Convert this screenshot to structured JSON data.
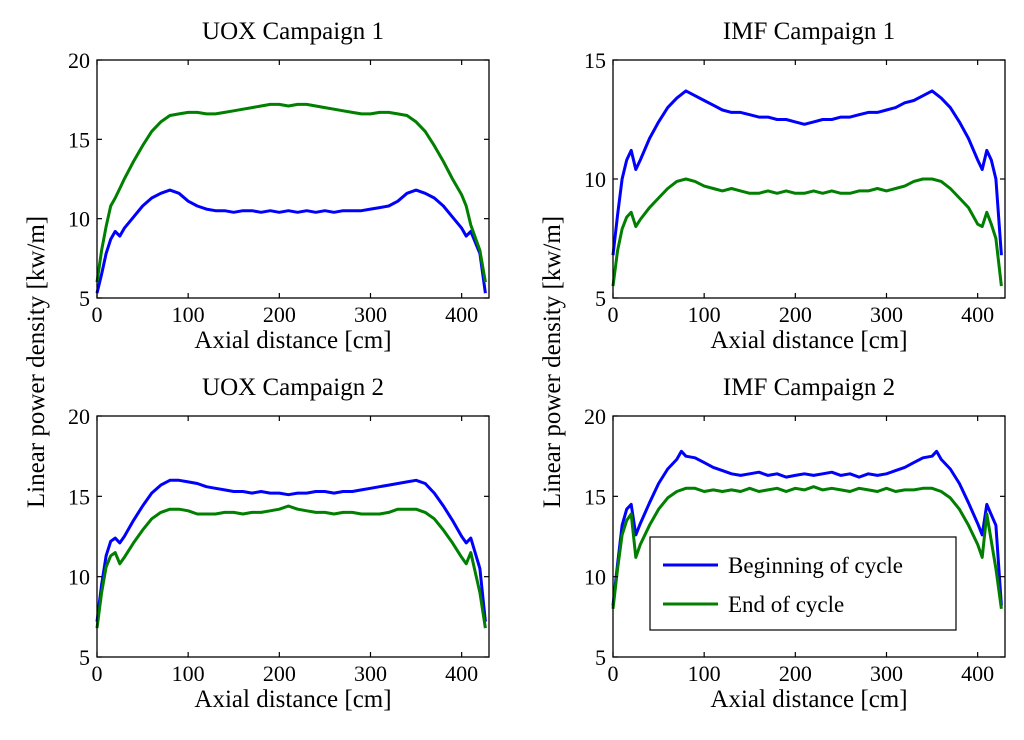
{
  "figure": {
    "shared_ylabel": "Linear power density [kw/m]",
    "legend": {
      "placement": "lower-right of bottom-right panel",
      "entries": [
        {
          "label": "Beginning of cycle",
          "color": "#0000ff"
        },
        {
          "label": "End of cycle",
          "color": "#007f00"
        }
      ]
    }
  },
  "chart_data": [
    {
      "type": "line",
      "title": "UOX Campaign 1",
      "xlabel": "Axial distance [cm]",
      "ylabel": "Linear power density [kw/m]",
      "xlim": [
        0,
        430
      ],
      "ylim": [
        5,
        20
      ],
      "xticks": [
        0,
        100,
        200,
        300,
        400
      ],
      "yticks": [
        5,
        10,
        15,
        20
      ],
      "grid": false,
      "series": [
        {
          "name": "Beginning of cycle",
          "color": "#0000ff",
          "x": [
            0,
            5,
            10,
            15,
            20,
            25,
            30,
            40,
            50,
            60,
            70,
            80,
            90,
            100,
            110,
            120,
            130,
            140,
            150,
            160,
            170,
            180,
            190,
            200,
            210,
            220,
            230,
            240,
            250,
            260,
            270,
            280,
            290,
            300,
            310,
            320,
            330,
            340,
            350,
            360,
            370,
            380,
            390,
            400,
            405,
            410,
            420,
            426
          ],
          "y": [
            5.3,
            6.5,
            7.8,
            8.7,
            9.2,
            8.9,
            9.4,
            10.1,
            10.8,
            11.3,
            11.6,
            11.8,
            11.6,
            11.1,
            10.8,
            10.6,
            10.5,
            10.5,
            10.4,
            10.5,
            10.5,
            10.4,
            10.5,
            10.4,
            10.5,
            10.4,
            10.5,
            10.4,
            10.5,
            10.4,
            10.5,
            10.5,
            10.5,
            10.6,
            10.7,
            10.8,
            11.1,
            11.6,
            11.8,
            11.6,
            11.3,
            10.8,
            10.1,
            9.4,
            8.9,
            9.2,
            7.8,
            5.3
          ]
        },
        {
          "name": "End of cycle",
          "color": "#007f00",
          "x": [
            0,
            5,
            10,
            15,
            20,
            25,
            30,
            40,
            50,
            60,
            70,
            80,
            90,
            100,
            110,
            120,
            130,
            140,
            150,
            160,
            170,
            180,
            190,
            200,
            210,
            220,
            230,
            240,
            250,
            260,
            270,
            280,
            290,
            300,
            310,
            320,
            330,
            340,
            350,
            360,
            370,
            380,
            390,
            400,
            405,
            410,
            420,
            426
          ],
          "y": [
            6.0,
            8.0,
            9.5,
            10.8,
            11.3,
            11.9,
            12.5,
            13.6,
            14.6,
            15.5,
            16.1,
            16.5,
            16.6,
            16.7,
            16.7,
            16.6,
            16.6,
            16.7,
            16.8,
            16.9,
            17.0,
            17.1,
            17.2,
            17.2,
            17.1,
            17.2,
            17.2,
            17.1,
            17.0,
            16.9,
            16.8,
            16.7,
            16.6,
            16.6,
            16.7,
            16.7,
            16.6,
            16.5,
            16.1,
            15.5,
            14.6,
            13.6,
            12.5,
            11.5,
            10.8,
            9.6,
            8.0,
            6.0
          ]
        }
      ]
    },
    {
      "type": "line",
      "title": "IMF Campaign 1",
      "xlabel": "Axial distance [cm]",
      "ylabel": "Linear power density [kw/m]",
      "xlim": [
        0,
        430
      ],
      "ylim": [
        5,
        15
      ],
      "xticks": [
        0,
        100,
        200,
        300,
        400
      ],
      "yticks": [
        5,
        10,
        15
      ],
      "grid": false,
      "series": [
        {
          "name": "Beginning of cycle",
          "color": "#0000ff",
          "x": [
            0,
            5,
            10,
            15,
            20,
            25,
            30,
            40,
            50,
            60,
            70,
            80,
            90,
            100,
            110,
            120,
            130,
            140,
            150,
            160,
            170,
            180,
            190,
            200,
            210,
            220,
            230,
            240,
            250,
            260,
            270,
            280,
            290,
            300,
            310,
            320,
            330,
            340,
            350,
            360,
            370,
            380,
            390,
            400,
            405,
            410,
            415,
            420,
            426
          ],
          "y": [
            6.8,
            8.5,
            10.0,
            10.8,
            11.2,
            10.4,
            10.8,
            11.7,
            12.4,
            13.0,
            13.4,
            13.7,
            13.5,
            13.3,
            13.1,
            12.9,
            12.8,
            12.8,
            12.7,
            12.6,
            12.6,
            12.5,
            12.5,
            12.4,
            12.3,
            12.4,
            12.5,
            12.5,
            12.6,
            12.6,
            12.7,
            12.8,
            12.8,
            12.9,
            13.0,
            13.2,
            13.3,
            13.5,
            13.7,
            13.4,
            13.0,
            12.4,
            11.7,
            10.8,
            10.4,
            11.2,
            10.8,
            10.0,
            6.8
          ]
        },
        {
          "name": "End of cycle",
          "color": "#007f00",
          "x": [
            0,
            5,
            10,
            15,
            20,
            25,
            30,
            40,
            50,
            60,
            70,
            80,
            90,
            100,
            110,
            120,
            130,
            140,
            150,
            160,
            170,
            180,
            190,
            200,
            210,
            220,
            230,
            240,
            250,
            260,
            270,
            280,
            290,
            300,
            310,
            320,
            330,
            340,
            350,
            360,
            370,
            380,
            390,
            400,
            405,
            410,
            415,
            420,
            426
          ],
          "y": [
            5.5,
            7.0,
            7.9,
            8.4,
            8.6,
            8.0,
            8.3,
            8.8,
            9.2,
            9.6,
            9.9,
            10.0,
            9.9,
            9.7,
            9.6,
            9.5,
            9.6,
            9.5,
            9.4,
            9.4,
            9.5,
            9.4,
            9.5,
            9.4,
            9.4,
            9.5,
            9.4,
            9.5,
            9.4,
            9.4,
            9.5,
            9.5,
            9.6,
            9.5,
            9.6,
            9.7,
            9.9,
            10.0,
            10.0,
            9.9,
            9.6,
            9.2,
            8.8,
            8.1,
            8.0,
            8.6,
            8.1,
            7.5,
            5.5
          ]
        }
      ]
    },
    {
      "type": "line",
      "title": "UOX Campaign 2",
      "xlabel": "Axial distance [cm]",
      "ylabel": "Linear power density [kw/m]",
      "xlim": [
        0,
        430
      ],
      "ylim": [
        5,
        20
      ],
      "xticks": [
        0,
        100,
        200,
        300,
        400
      ],
      "yticks": [
        5,
        10,
        15,
        20
      ],
      "grid": false,
      "series": [
        {
          "name": "Beginning of cycle",
          "color": "#0000ff",
          "x": [
            0,
            5,
            10,
            15,
            20,
            25,
            30,
            40,
            50,
            60,
            70,
            80,
            90,
            100,
            110,
            120,
            130,
            140,
            150,
            160,
            170,
            180,
            190,
            200,
            210,
            220,
            230,
            240,
            250,
            260,
            270,
            280,
            290,
            300,
            310,
            320,
            330,
            340,
            350,
            360,
            370,
            380,
            390,
            400,
            405,
            410,
            420,
            426
          ],
          "y": [
            7.2,
            9.5,
            11.3,
            12.2,
            12.4,
            12.1,
            12.5,
            13.5,
            14.4,
            15.2,
            15.7,
            16.0,
            16.0,
            15.9,
            15.8,
            15.6,
            15.5,
            15.4,
            15.3,
            15.3,
            15.2,
            15.3,
            15.2,
            15.2,
            15.1,
            15.2,
            15.2,
            15.3,
            15.3,
            15.2,
            15.3,
            15.3,
            15.4,
            15.5,
            15.6,
            15.7,
            15.8,
            15.9,
            16.0,
            15.8,
            15.2,
            14.4,
            13.5,
            12.5,
            12.1,
            12.4,
            10.5,
            7.2
          ]
        },
        {
          "name": "End of cycle",
          "color": "#007f00",
          "x": [
            0,
            5,
            10,
            15,
            20,
            25,
            30,
            40,
            50,
            60,
            70,
            80,
            90,
            100,
            110,
            120,
            130,
            140,
            150,
            160,
            170,
            180,
            190,
            200,
            210,
            220,
            230,
            240,
            250,
            260,
            270,
            280,
            290,
            300,
            310,
            320,
            330,
            340,
            350,
            360,
            370,
            380,
            390,
            400,
            405,
            410,
            420,
            426
          ],
          "y": [
            6.8,
            9.0,
            10.6,
            11.3,
            11.5,
            10.8,
            11.2,
            12.1,
            12.9,
            13.6,
            14.0,
            14.2,
            14.2,
            14.1,
            13.9,
            13.9,
            13.9,
            14.0,
            14.0,
            13.9,
            14.0,
            14.0,
            14.1,
            14.2,
            14.4,
            14.2,
            14.1,
            14.0,
            14.0,
            13.9,
            14.0,
            14.0,
            13.9,
            13.9,
            13.9,
            14.0,
            14.2,
            14.2,
            14.2,
            14.0,
            13.6,
            12.9,
            12.1,
            11.2,
            10.8,
            11.5,
            9.0,
            6.8
          ]
        }
      ]
    },
    {
      "type": "line",
      "title": "IMF Campaign 2",
      "xlabel": "Axial distance [cm]",
      "ylabel": "Linear power density [kw/m]",
      "xlim": [
        0,
        430
      ],
      "ylim": [
        5,
        20
      ],
      "xticks": [
        0,
        100,
        200,
        300,
        400
      ],
      "yticks": [
        5,
        10,
        15,
        20
      ],
      "grid": false,
      "series": [
        {
          "name": "Beginning of cycle",
          "color": "#0000ff",
          "x": [
            0,
            5,
            10,
            15,
            20,
            25,
            30,
            40,
            50,
            60,
            70,
            75,
            80,
            90,
            100,
            110,
            120,
            130,
            140,
            150,
            160,
            170,
            180,
            190,
            200,
            210,
            220,
            230,
            240,
            250,
            260,
            270,
            280,
            290,
            300,
            310,
            320,
            330,
            340,
            350,
            355,
            360,
            370,
            380,
            390,
            400,
            405,
            410,
            420,
            426
          ],
          "y": [
            8.2,
            10.8,
            13.2,
            14.2,
            14.5,
            12.6,
            13.3,
            14.6,
            15.8,
            16.7,
            17.3,
            17.8,
            17.5,
            17.4,
            17.1,
            16.8,
            16.6,
            16.4,
            16.3,
            16.4,
            16.5,
            16.3,
            16.4,
            16.2,
            16.3,
            16.4,
            16.3,
            16.4,
            16.5,
            16.3,
            16.4,
            16.2,
            16.4,
            16.3,
            16.4,
            16.6,
            16.8,
            17.1,
            17.4,
            17.5,
            17.8,
            17.3,
            16.7,
            15.8,
            14.6,
            13.3,
            12.6,
            14.5,
            13.2,
            8.2
          ]
        },
        {
          "name": "End of cycle",
          "color": "#007f00",
          "x": [
            0,
            5,
            10,
            15,
            20,
            25,
            30,
            40,
            50,
            60,
            70,
            80,
            90,
            100,
            110,
            120,
            130,
            140,
            150,
            160,
            170,
            180,
            190,
            200,
            210,
            220,
            230,
            240,
            250,
            260,
            270,
            280,
            290,
            300,
            310,
            320,
            330,
            340,
            350,
            360,
            370,
            380,
            390,
            400,
            405,
            410,
            420,
            426
          ],
          "y": [
            8.0,
            10.5,
            12.6,
            13.5,
            13.9,
            11.2,
            12.0,
            13.2,
            14.2,
            14.9,
            15.3,
            15.5,
            15.5,
            15.3,
            15.4,
            15.3,
            15.4,
            15.3,
            15.5,
            15.3,
            15.4,
            15.5,
            15.3,
            15.5,
            15.4,
            15.6,
            15.4,
            15.5,
            15.4,
            15.3,
            15.5,
            15.4,
            15.3,
            15.5,
            15.3,
            15.4,
            15.4,
            15.5,
            15.5,
            15.3,
            14.9,
            14.2,
            13.2,
            12.0,
            11.2,
            13.9,
            10.5,
            8.0
          ]
        }
      ]
    }
  ]
}
